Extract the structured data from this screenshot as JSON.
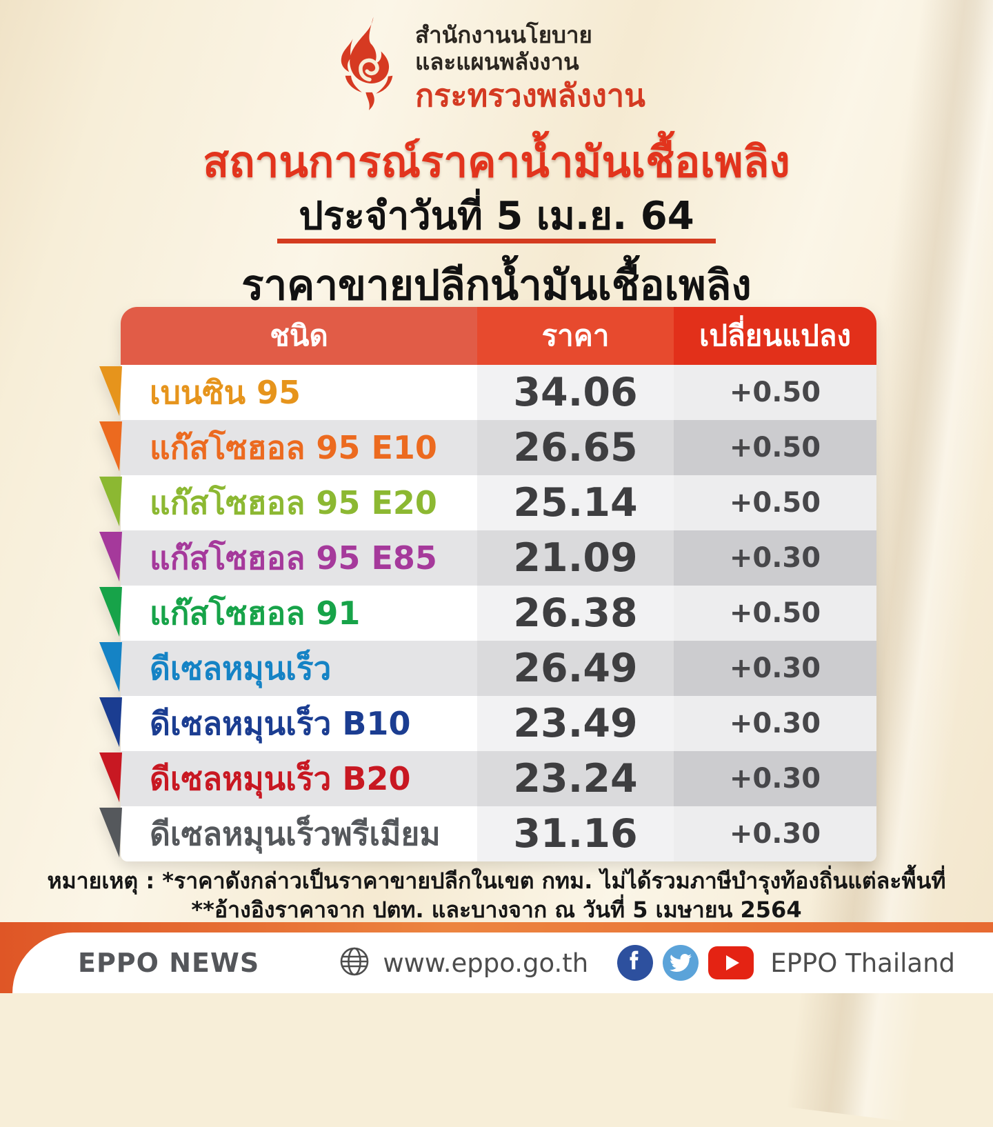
{
  "logo": {
    "org_line1": "สำนักงานนโยบาย",
    "org_line2": "และแผนพลังงาน",
    "org_line3": "กระทรวงพลังงาน"
  },
  "header": {
    "title": "สถานการณ์ราคาน้ำมันเชื้อเพลิง",
    "date_line": "ประจำวันที่ 5 เม.ย. 64",
    "subtitle": "ราคาขายปลีกน้ำมันเชื้อเพลิง"
  },
  "table": {
    "columns": [
      "ชนิด",
      "ราคา",
      "เปลี่ยนแปลง"
    ],
    "rows": [
      {
        "name": "เบนซิน 95",
        "price": "34.06",
        "change": "+0.50",
        "color": "#e6941c"
      },
      {
        "name": "แก๊สโซฮอล 95 E10",
        "price": "26.65",
        "change": "+0.50",
        "color": "#ec6a1f"
      },
      {
        "name": "แก๊สโซฮอล 95 E20",
        "price": "25.14",
        "change": "+0.50",
        "color": "#8cb832"
      },
      {
        "name": "แก๊สโซฮอล 95 E85",
        "price": "21.09",
        "change": "+0.30",
        "color": "#a5399b"
      },
      {
        "name": "แก๊สโซฮอล 91",
        "price": "26.38",
        "change": "+0.50",
        "color": "#17a349"
      },
      {
        "name": "ดีเซลหมุนเร็ว",
        "price": "26.49",
        "change": "+0.30",
        "color": "#1583c5"
      },
      {
        "name": "ดีเซลหมุนเร็ว B10",
        "price": "23.49",
        "change": "+0.30",
        "color": "#1b3d91"
      },
      {
        "name": "ดีเซลหมุนเร็ว B20",
        "price": "23.24",
        "change": "+0.30",
        "color": "#c81822"
      },
      {
        "name": "ดีเซลหมุนเร็วพรีเมียม",
        "price": "31.16",
        "change": "+0.30",
        "color": "#55585c"
      }
    ]
  },
  "footnote": {
    "line1": "หมายเหตุ : *ราคาดังกล่าวเป็นราคาขายปลีกในเขต กทม. ไม่ได้รวมภาษีบำรุงท้องถิ่นแต่ละพื้นที่",
    "line2": "**อ้างอิงราคาจาก ปตท. และบางจาก ณ วันที่ 5 เมษายน 2564"
  },
  "footer": {
    "brand": "EPPO NEWS",
    "website": "www.eppo.go.th",
    "social_caption": "EPPO Thailand"
  },
  "colors": {
    "accent_red": "#e2341d",
    "header_col1": "#e15c47",
    "header_col2": "#e74a2e",
    "header_col3": "#e2301a",
    "band_orange": "#ec8440",
    "facebook_blue": "#2d509e",
    "twitter_blue": "#5ba3d9",
    "youtube_red": "#e42313",
    "background_cream": "#f7eed8"
  }
}
